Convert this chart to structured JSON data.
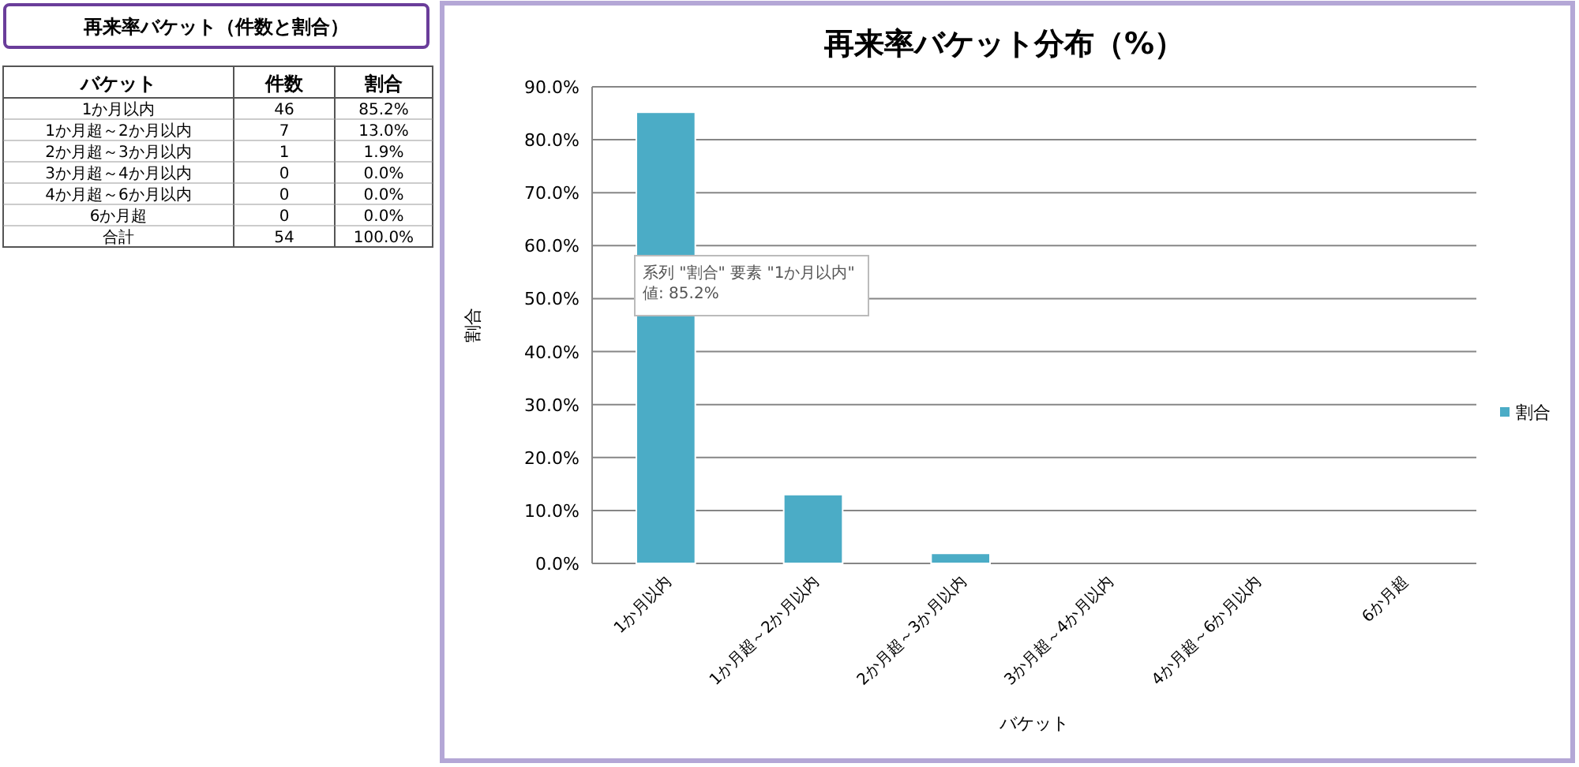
{
  "chart_data": [
    {
      "type": "other",
      "title": "再来率バケット（件数と割合）",
      "xlabel": "バケット",
      "categories": [
        "1か月以内",
        "1か月超～2か月以内",
        "2か月超～3か月以内",
        "3か月超～4か月以内",
        "4か月超～6か月以内",
        "6か月超",
        "合計"
      ],
      "series": [
        {
          "name": "件数",
          "values": [
            46,
            7,
            1,
            0,
            0,
            0,
            54
          ],
          "value_labels": [
            "46",
            "7",
            "1",
            "0",
            "0",
            "0",
            "54"
          ]
        },
        {
          "name": "割合",
          "values": [
            85.2,
            13.0,
            1.9,
            0.0,
            0.0,
            0.0,
            100.0
          ],
          "value_labels": [
            "85.2%",
            "13.0%",
            "1.9%",
            "0.0%",
            "0.0%",
            "0.0%",
            "100.0%"
          ]
        }
      ]
    },
    {
      "type": "bar",
      "title": "再来率バケット分布（%）",
      "xlabel": "バケット",
      "ylabel": "割合",
      "categories": [
        "1か月以内",
        "1か月超～2か月以内",
        "2か月超～3か月以内",
        "3か月超～4か月以内",
        "4か月超～6か月以内",
        "6か月超"
      ],
      "series": [
        {
          "name": "割合",
          "color": "#4bacc6",
          "values": [
            85.2,
            13.0,
            1.9,
            0.0,
            0.0,
            0.0
          ]
        }
      ],
      "ylim": [
        0,
        90
      ],
      "yticks": [
        {
          "value": 0,
          "label": "0.0%"
        },
        {
          "value": 10,
          "label": "10.0%"
        },
        {
          "value": 20,
          "label": "20.0%"
        },
        {
          "value": 30,
          "label": "30.0%"
        },
        {
          "value": 40,
          "label": "40.0%"
        },
        {
          "value": 50,
          "label": "50.0%"
        },
        {
          "value": 60,
          "label": "60.0%"
        },
        {
          "value": 70,
          "label": "70.0%"
        },
        {
          "value": 80,
          "label": "80.0%"
        },
        {
          "value": 90,
          "label": "90.0%"
        }
      ],
      "grid": "y",
      "legend": "right",
      "annotations": [
        "系列 \"割合\" 要素 \"1か月以内\"\n値: 85.2%"
      ]
    }
  ]
}
